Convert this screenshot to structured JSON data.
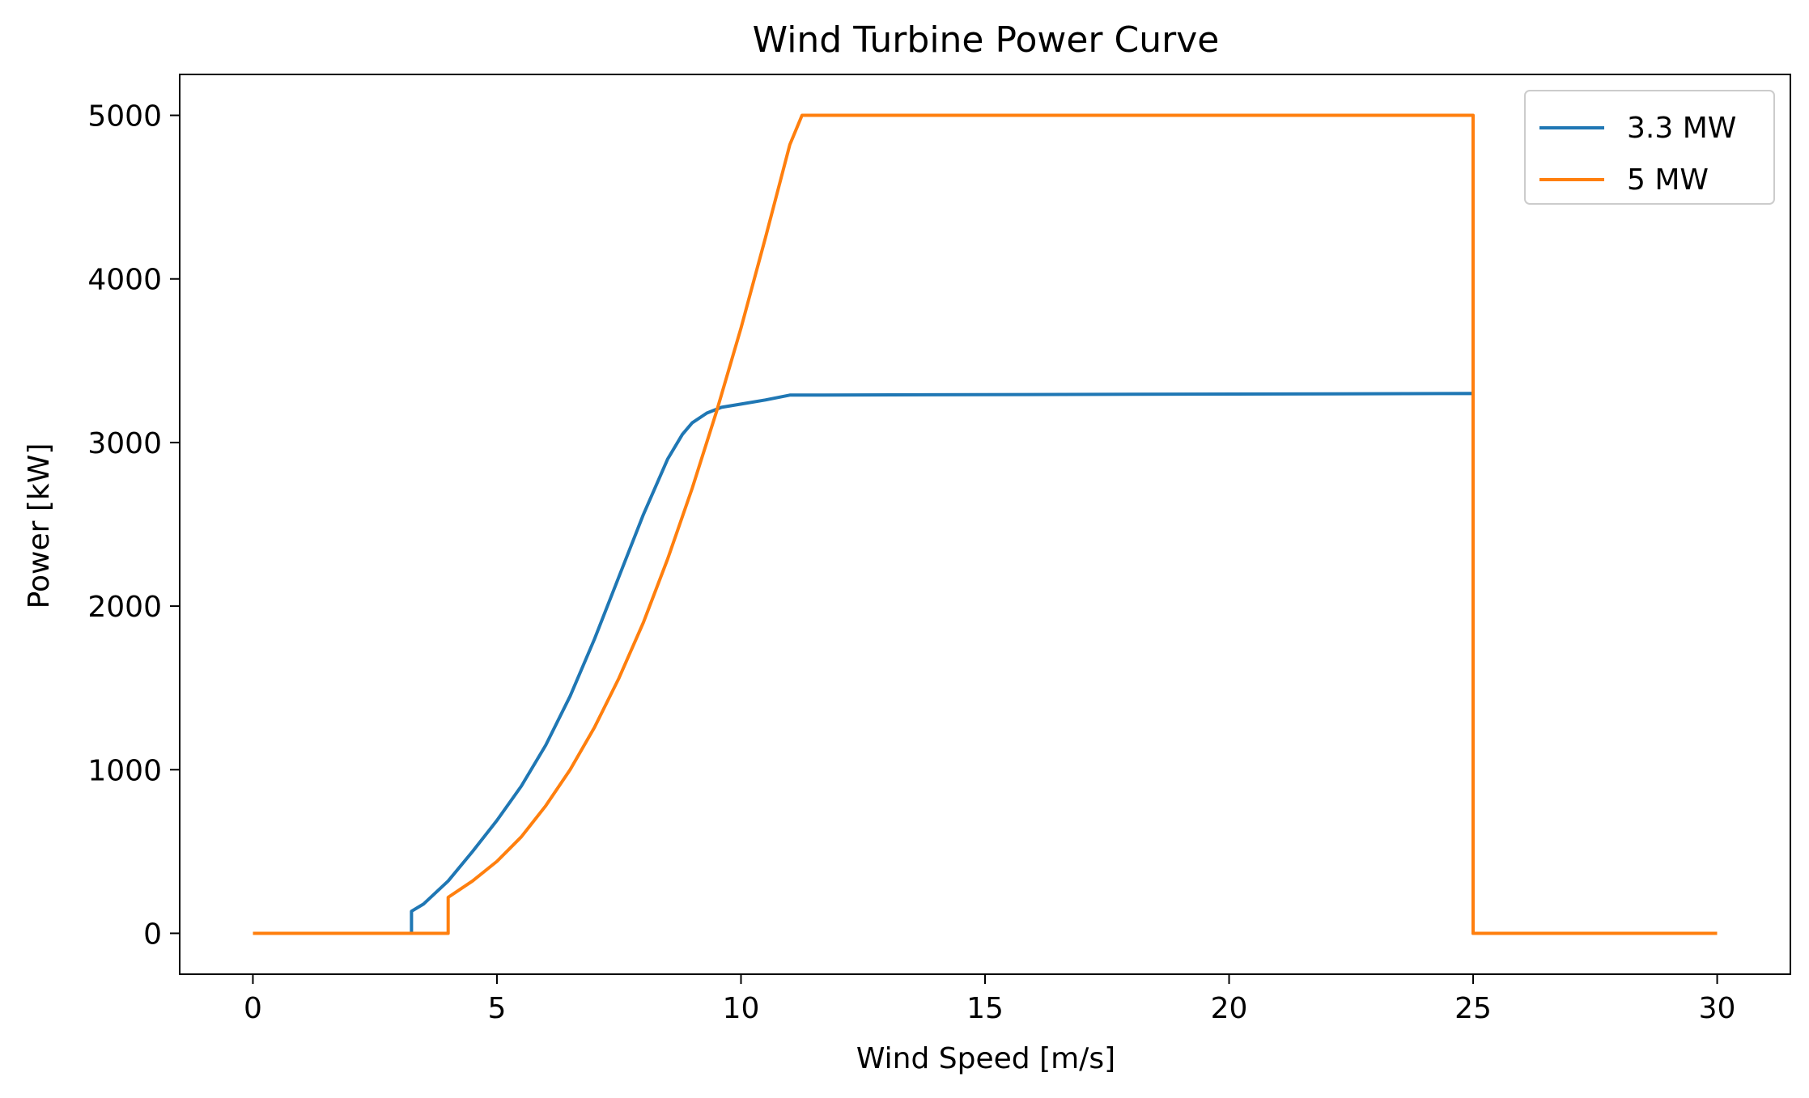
{
  "chart_data": {
    "type": "line",
    "title": "Wind Turbine Power Curve",
    "xlabel": "Wind Speed [m/s]",
    "ylabel": "Power [kW]",
    "xlim": [
      -1.5,
      31.5
    ],
    "ylim": [
      -250,
      5250
    ],
    "xticks": [
      0,
      5,
      10,
      15,
      20,
      25,
      30
    ],
    "yticks": [
      0,
      1000,
      2000,
      3000,
      4000,
      5000
    ],
    "grid": false,
    "legend_position": "top-right",
    "series": [
      {
        "name": "3.3 MW",
        "color": "#1f77b4",
        "x": [
          0,
          3.25,
          3.25,
          3.5,
          4,
          4.5,
          5,
          5.5,
          6,
          6.5,
          7,
          7.5,
          8,
          8.5,
          8.8,
          9.0,
          9.3,
          9.6,
          10.0,
          10.5,
          11,
          25,
          25,
          30
        ],
        "y": [
          0,
          0,
          135,
          180,
          320,
          500,
          690,
          900,
          1150,
          1450,
          1800,
          2180,
          2560,
          2900,
          3050,
          3120,
          3180,
          3215,
          3235,
          3260,
          3290,
          3300,
          0,
          0
        ]
      },
      {
        "name": "5 MW",
        "color": "#ff7f0e",
        "x": [
          0,
          4,
          4,
          4.5,
          5,
          5.5,
          6,
          6.5,
          7,
          7.5,
          8,
          8.5,
          9,
          9.5,
          10,
          10.5,
          11,
          11.25,
          11.5,
          25,
          25,
          30
        ],
        "y": [
          0,
          0,
          220,
          320,
          440,
          590,
          780,
          1000,
          1260,
          1560,
          1900,
          2290,
          2720,
          3190,
          3700,
          4250,
          4820,
          5000,
          5000,
          5000,
          0,
          0
        ]
      }
    ]
  }
}
